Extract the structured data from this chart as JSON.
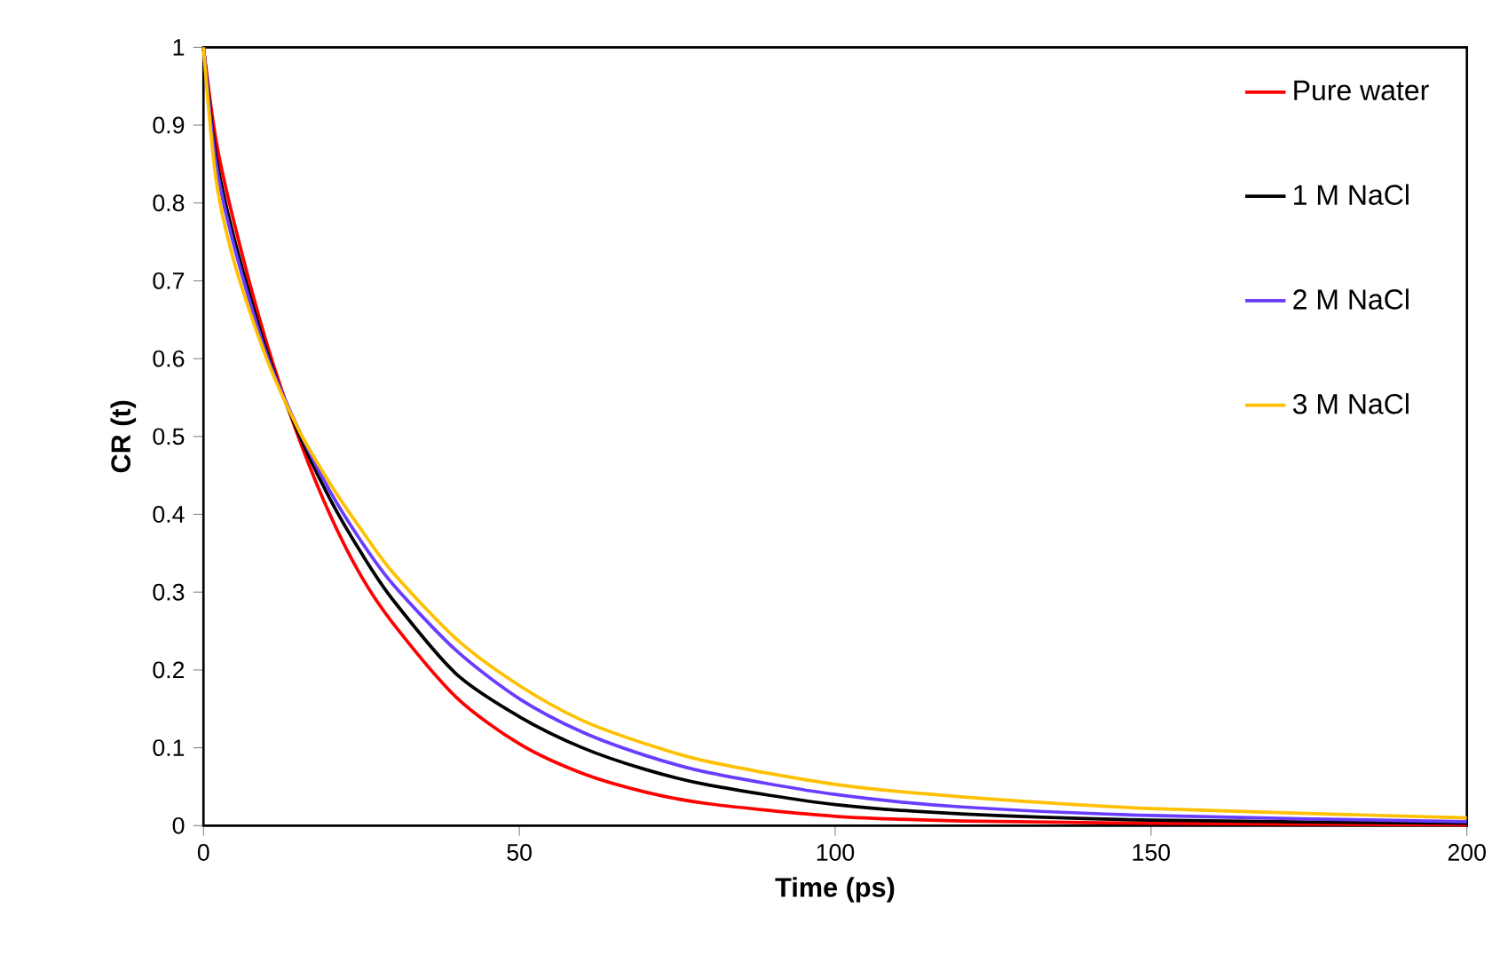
{
  "chart_data": {
    "type": "line",
    "xlabel": "Time (ps)",
    "ylabel": "CR (t)",
    "x": [
      0,
      2,
      5,
      10,
      15,
      20,
      25,
      30,
      40,
      50,
      60,
      70,
      80,
      100,
      120,
      150,
      200
    ],
    "xlim": [
      0,
      200
    ],
    "xticks": [
      0,
      50,
      100,
      150,
      200
    ],
    "ylim": [
      0,
      1
    ],
    "yticks": [
      0,
      0.1,
      0.2,
      0.3,
      0.4,
      0.5,
      0.6,
      0.7,
      0.8,
      0.9,
      1
    ],
    "grid": false,
    "legend": "top right",
    "marker": "none",
    "line_style": "solid",
    "series": [
      {
        "name": "Pure water",
        "color": "#ff0000",
        "values": [
          1,
          0.88,
          0.77,
          0.62,
          0.5,
          0.4,
          0.32,
          0.26,
          0.165,
          0.105,
          0.067,
          0.043,
          0.028,
          0.012,
          0.006,
          0.003,
          0.001
        ]
      },
      {
        "name": "1 M NaCl",
        "color": "#000000",
        "values": [
          1,
          0.86,
          0.75,
          0.61,
          0.505,
          0.42,
          0.35,
          0.29,
          0.195,
          0.14,
          0.1,
          0.072,
          0.052,
          0.027,
          0.015,
          0.007,
          0.003
        ]
      },
      {
        "name": "2 M NaCl",
        "color": "#6a3cff",
        "values": [
          1,
          0.85,
          0.74,
          0.605,
          0.51,
          0.43,
          0.365,
          0.31,
          0.225,
          0.163,
          0.12,
          0.09,
          0.068,
          0.04,
          0.024,
          0.013,
          0.005
        ]
      },
      {
        "name": "3 M NaCl",
        "color": "#ffc000",
        "values": [
          1,
          0.83,
          0.72,
          0.6,
          0.51,
          0.44,
          0.38,
          0.325,
          0.24,
          0.18,
          0.135,
          0.105,
          0.082,
          0.053,
          0.037,
          0.022,
          0.01
        ]
      }
    ]
  }
}
